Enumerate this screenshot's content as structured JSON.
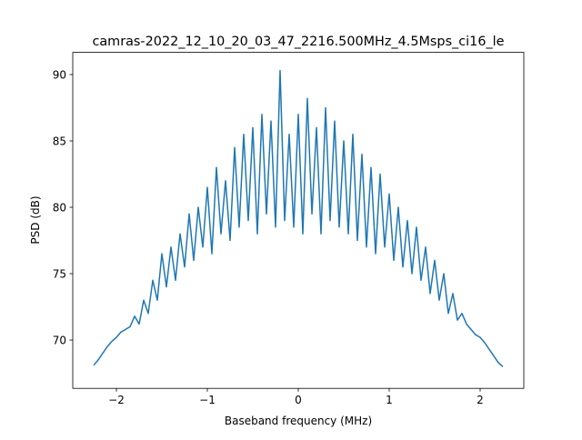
{
  "chart_data": {
    "type": "line",
    "title": "camras-2022_12_10_20_03_47_2216.500MHz_4.5Msps_ci16_le",
    "xlabel": "Baseband frequency (MHz)",
    "ylabel": "PSD (dB)",
    "xlim": [
      -2.48,
      2.48
    ],
    "ylim": [
      66.36,
      91.67
    ],
    "xticks": [
      -2,
      -1,
      0,
      1,
      2
    ],
    "xtick_labels": [
      "−2",
      "−1",
      "0",
      "1",
      "2"
    ],
    "yticks": [
      70,
      75,
      80,
      85,
      90
    ],
    "ytick_labels": [
      "70",
      "75",
      "80",
      "85",
      "90"
    ],
    "grid": false,
    "color": "#1f77b4",
    "series": [
      {
        "name": "PSD",
        "x": [
          -2.25,
          -2.2,
          -2.15,
          -2.1,
          -2.05,
          -2.0,
          -1.95,
          -1.9,
          -1.85,
          -1.8,
          -1.75,
          -1.7,
          -1.65,
          -1.6,
          -1.55,
          -1.5,
          -1.45,
          -1.4,
          -1.35,
          -1.3,
          -1.25,
          -1.2,
          -1.15,
          -1.1,
          -1.05,
          -1.0,
          -0.95,
          -0.9,
          -0.85,
          -0.8,
          -0.75,
          -0.7,
          -0.65,
          -0.6,
          -0.55,
          -0.5,
          -0.45,
          -0.4,
          -0.35,
          -0.3,
          -0.25,
          -0.2,
          -0.15,
          -0.1,
          -0.05,
          0.0,
          0.05,
          0.1,
          0.15,
          0.2,
          0.25,
          0.3,
          0.35,
          0.4,
          0.45,
          0.5,
          0.55,
          0.6,
          0.65,
          0.7,
          0.75,
          0.8,
          0.85,
          0.9,
          0.95,
          1.0,
          1.05,
          1.1,
          1.15,
          1.2,
          1.25,
          1.3,
          1.35,
          1.4,
          1.45,
          1.5,
          1.55,
          1.6,
          1.65,
          1.7,
          1.75,
          1.8,
          1.85,
          1.9,
          1.95,
          2.0,
          2.05,
          2.1,
          2.15,
          2.2,
          2.25
        ],
        "y": [
          68.1,
          68.5,
          69.0,
          69.5,
          69.9,
          70.2,
          70.6,
          70.8,
          71.0,
          71.8,
          71.2,
          73.0,
          72.0,
          74.5,
          73.0,
          76.5,
          74.0,
          77.0,
          74.5,
          78.0,
          75.5,
          79.5,
          76.0,
          80.0,
          77.0,
          81.5,
          76.5,
          83.0,
          78.0,
          82.0,
          77.5,
          84.5,
          78.5,
          85.5,
          79.0,
          86.0,
          78.0,
          87.0,
          79.5,
          86.5,
          78.5,
          90.3,
          79.0,
          85.5,
          78.5,
          87.0,
          78.0,
          88.2,
          79.5,
          86.0,
          78.0,
          87.5,
          79.0,
          86.5,
          78.5,
          85.0,
          78.0,
          85.5,
          77.5,
          84.0,
          77.0,
          83.0,
          76.5,
          82.5,
          77.0,
          81.0,
          76.0,
          80.0,
          75.5,
          79.0,
          75.0,
          78.5,
          74.5,
          77.0,
          73.5,
          76.0,
          73.0,
          75.0,
          72.0,
          73.5,
          71.5,
          72.0,
          71.2,
          70.8,
          70.4,
          70.2,
          69.8,
          69.3,
          68.8,
          68.3,
          68.0
        ]
      }
    ]
  }
}
